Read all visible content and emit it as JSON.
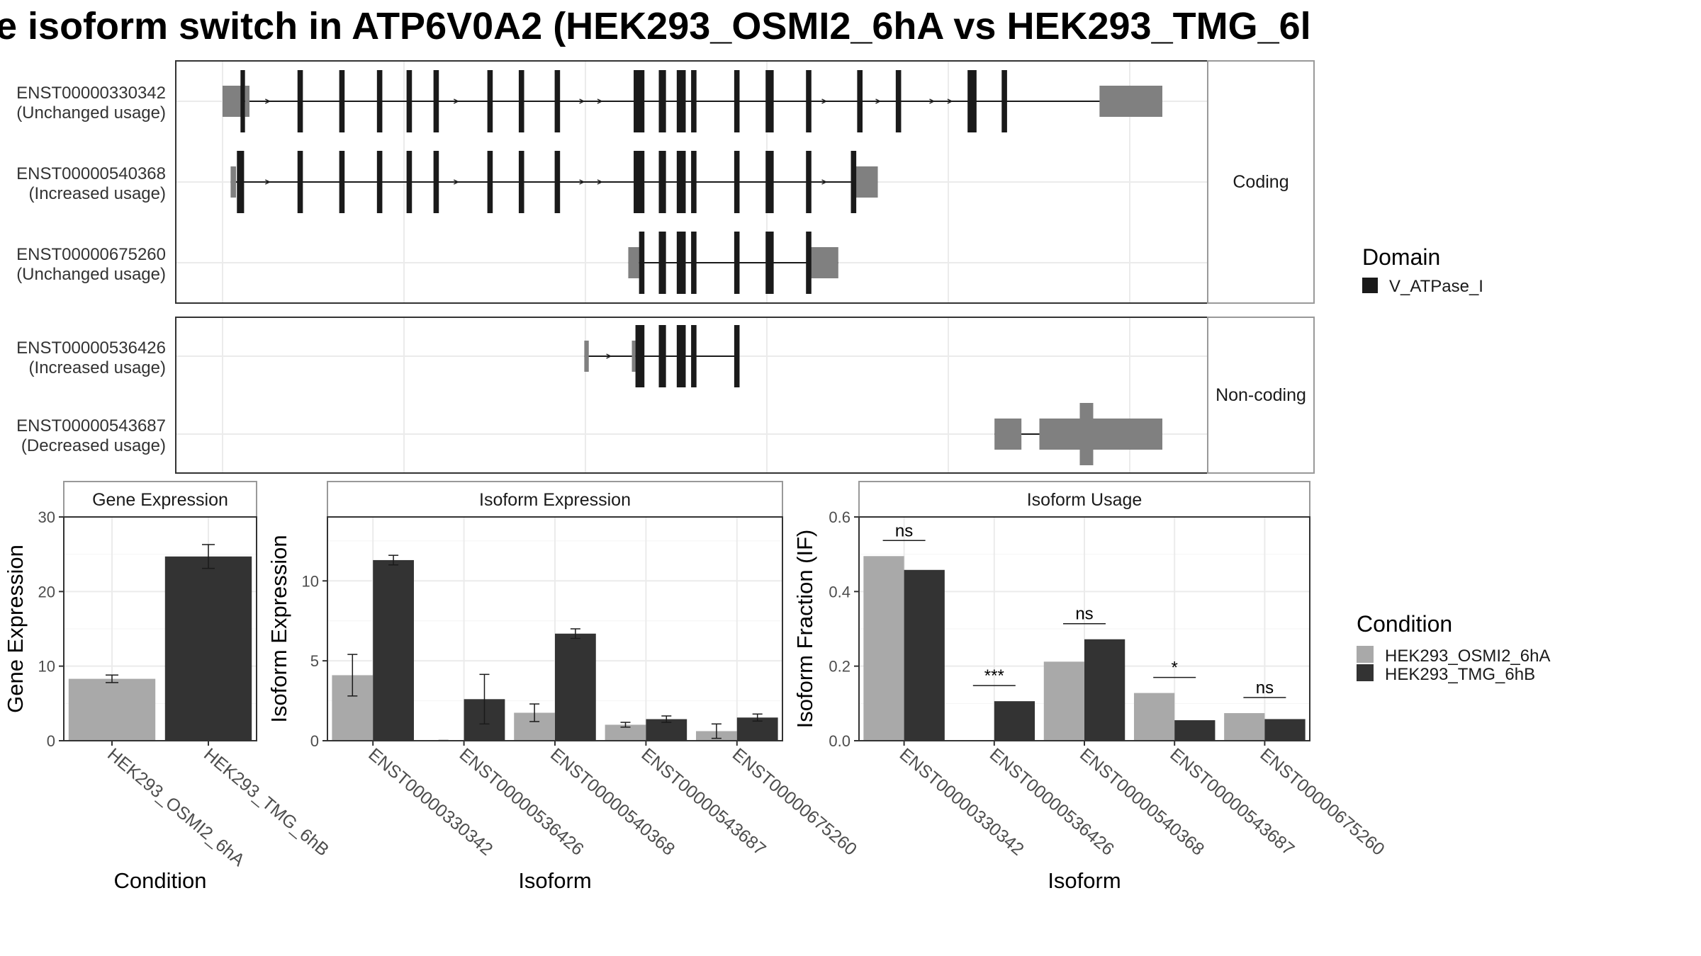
{
  "title": "e isoform switch in ATP6V0A2 (HEK293_OSMI2_6hA vs HEK293_TMG_6l",
  "colors": {
    "cond1": "#a9a9a9",
    "cond2": "#333333",
    "domain": "#1a1a1a",
    "utr": "#808080",
    "grid": "#ebebeb",
    "strip": "#ffffff"
  },
  "strips": {
    "coding": "Coding",
    "noncoding": "Non-coding",
    "gene_expression": "Gene Expression",
    "isoform_expression": "Isoform Expression",
    "isoform_usage": "Isoform Usage"
  },
  "legend_domain": {
    "title": "Domain",
    "items": [
      "V_ATPase_I"
    ]
  },
  "legend_condition": {
    "title": "Condition",
    "items": [
      "HEK293_OSMI2_6hA",
      "HEK293_TMG_6hB"
    ]
  },
  "chart_data": [
    {
      "type": "gene_structure",
      "transcripts": [
        {
          "id": "ENST00000330342",
          "usage": "(Unchanged usage)",
          "group": "Coding",
          "utr": [
            [
              0.0,
              2.4
            ],
            [
              97.7,
              104.7
            ]
          ],
          "cds": [
            [
              2.5,
              3.0
            ]
          ],
          "domains": [
            [
              2.0,
              2.5
            ],
            [
              8.35,
              8.95
            ],
            [
              13.0,
              13.6
            ],
            [
              17.2,
              17.8
            ],
            [
              20.5,
              21.1
            ],
            [
              23.5,
              24.1
            ],
            [
              29.5,
              30.1
            ],
            [
              33.0,
              33.6
            ],
            [
              37.0,
              37.6
            ],
            [
              45.8,
              47.0
            ],
            [
              48.6,
              49.4
            ],
            [
              50.6,
              51.6
            ],
            [
              52.2,
              52.8
            ],
            [
              57.0,
              57.6
            ],
            [
              60.5,
              61.4
            ],
            [
              65.0,
              65.6
            ],
            [
              70.7,
              71.3
            ],
            [
              75.0,
              75.6
            ],
            [
              83.0,
              84.0
            ],
            [
              86.8,
              87.4
            ]
          ],
          "arrows": [
            5.0,
            26.0,
            40.0,
            42.0,
            67.0,
            73.0,
            79.0,
            81.0
          ]
        },
        {
          "id": "ENST00000540368",
          "usage": "(Increased usage)",
          "group": "Coding",
          "utr": [
            [
              0.9,
              1.5
            ],
            [
              70.3,
              73.0
            ]
          ],
          "cds": [],
          "domains": [
            [
              1.6,
              2.4
            ],
            [
              8.35,
              8.95
            ],
            [
              13.0,
              13.6
            ],
            [
              17.2,
              17.8
            ],
            [
              20.5,
              21.1
            ],
            [
              23.5,
              24.1
            ],
            [
              29.5,
              30.1
            ],
            [
              33.0,
              33.6
            ],
            [
              37.0,
              37.6
            ],
            [
              45.8,
              47.0
            ],
            [
              48.6,
              49.4
            ],
            [
              50.6,
              51.6
            ],
            [
              52.2,
              52.8
            ],
            [
              57.0,
              57.6
            ],
            [
              60.5,
              61.4
            ],
            [
              65.0,
              65.6
            ],
            [
              70.0,
              70.6
            ]
          ],
          "arrows": [
            5.0,
            26.0,
            40.0,
            42.0,
            67.0
          ]
        },
        {
          "id": "ENST00000675260",
          "usage": "(Unchanged usage)",
          "group": "Coding",
          "utr": [
            [
              45.2,
              46.4
            ],
            [
              65.1,
              68.6
            ]
          ],
          "cds": [],
          "domains": [
            [
              46.4,
              47.0
            ],
            [
              48.6,
              49.4
            ],
            [
              50.6,
              51.6
            ],
            [
              52.2,
              52.8
            ],
            [
              57.0,
              57.6
            ],
            [
              60.5,
              61.4
            ],
            [
              65.0,
              65.6
            ]
          ],
          "arrows": []
        },
        {
          "id": "ENST00000536426",
          "usage": "(Increased usage)",
          "group": "Non-coding",
          "utr": [
            [
              40.3,
              40.8
            ],
            [
              45.6,
              46.0
            ]
          ],
          "cds": [],
          "domains": [
            [
              46.0,
              47.0
            ],
            [
              48.6,
              49.4
            ],
            [
              50.6,
              51.6
            ],
            [
              52.2,
              52.8
            ],
            [
              57.0,
              57.6
            ]
          ],
          "arrows": [
            43.0
          ]
        },
        {
          "id": "ENST00000543687",
          "usage": "(Decreased usage)",
          "group": "Non-coding",
          "utr": [
            [
              86.0,
              89.0
            ],
            [
              91.0,
              104.7
            ]
          ],
          "cds": [],
          "domains": [],
          "arrows": []
        }
      ]
    },
    {
      "type": "bar",
      "strip": "Gene Expression",
      "xlabel": "Condition",
      "ylabel": "Gene Expression",
      "ylim": [
        0,
        30
      ],
      "yticks": [
        0,
        10,
        20,
        30
      ],
      "categories": [
        "HEK293_OSMI2_6hA",
        "HEK293_TMG_6hB"
      ],
      "values": [
        8.3,
        24.7
      ],
      "errors": [
        0.5,
        1.6
      ]
    },
    {
      "type": "bar",
      "strip": "Isoform Expression",
      "xlabel": "Isoform",
      "ylabel": "Isoform Expression",
      "ylim": [
        0,
        14
      ],
      "yticks": [
        0,
        5,
        10
      ],
      "categories": [
        "ENST00000330342",
        "ENST00000536426",
        "ENST00000540368",
        "ENST00000543687",
        "ENST00000675260"
      ],
      "series": [
        {
          "name": "HEK293_OSMI2_6hA",
          "values": [
            4.1,
            0.0,
            1.75,
            1.0,
            0.6
          ],
          "errors": [
            1.3,
            0.02,
            0.55,
            0.15,
            0.45
          ]
        },
        {
          "name": "HEK293_TMG_6hB",
          "values": [
            11.3,
            2.6,
            6.7,
            1.35,
            1.45
          ],
          "errors": [
            0.3,
            1.55,
            0.3,
            0.2,
            0.22
          ]
        }
      ]
    },
    {
      "type": "bar",
      "strip": "Isoform Usage",
      "xlabel": "Isoform",
      "ylabel": "Isoform Fraction (IF)",
      "ylim": [
        0,
        0.6
      ],
      "yticks": [
        "0.0",
        "0.2",
        "0.4",
        "0.6"
      ],
      "categories": [
        "ENST00000330342",
        "ENST00000536426",
        "ENST00000540368",
        "ENST00000543687",
        "ENST00000675260"
      ],
      "series": [
        {
          "name": "HEK293_OSMI2_6hA",
          "values": [
            0.495,
            0.0,
            0.212,
            0.128,
            0.074
          ]
        },
        {
          "name": "HEK293_TMG_6hB",
          "values": [
            0.458,
            0.106,
            0.272,
            0.055,
            0.058
          ]
        }
      ],
      "significance": [
        "ns",
        "***",
        "ns",
        "*",
        "ns"
      ]
    }
  ]
}
